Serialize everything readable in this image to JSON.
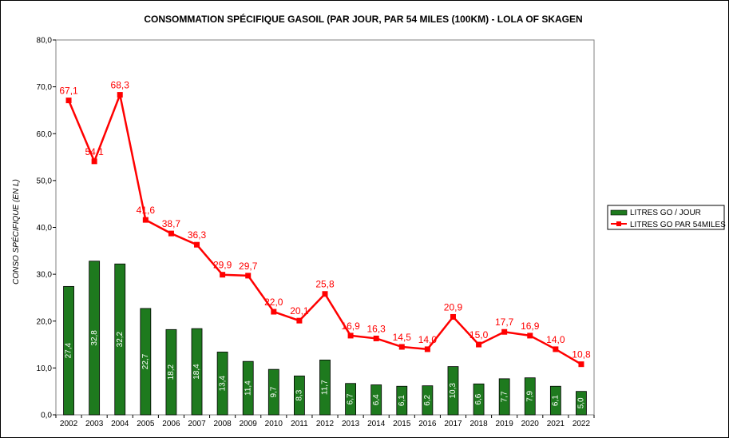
{
  "chart_data": {
    "type": "bar+line",
    "title": "CONSOMMATION SPÉCIFIQUE GASOIL (PAR JOUR, PAR 54 MILES (100KM) - LOLA OF SKAGEN",
    "ylabel": "CONSO SPÉCIFIQUE (EN L)",
    "xlabel": "",
    "ylim": [
      0,
      80
    ],
    "yticks": [
      "0,0",
      "10,0",
      "20,0",
      "30,0",
      "40,0",
      "50,0",
      "60,0",
      "70,0",
      "80,0"
    ],
    "categories": [
      "2002",
      "2003",
      "2004",
      "2005",
      "2006",
      "2007",
      "2008",
      "2009",
      "2010",
      "2011",
      "2012",
      "2013",
      "2014",
      "2015",
      "2016",
      "2017",
      "2018",
      "2019",
      "2020",
      "2021",
      "2022"
    ],
    "series": [
      {
        "name": "LITRES GO / JOUR",
        "kind": "bar",
        "color": "#1e7a1e",
        "values": [
          27.4,
          32.8,
          32.2,
          22.7,
          18.2,
          18.4,
          13.4,
          11.4,
          9.7,
          8.3,
          11.7,
          6.7,
          6.4,
          6.1,
          6.2,
          10.3,
          6.6,
          7.7,
          7.9,
          6.1,
          5.0
        ],
        "labels": [
          "27,4",
          "32,8",
          "32,2",
          "22,7",
          "18,2",
          "18,4",
          "13,4",
          "11,4",
          "9,7",
          "8,3",
          "11,7",
          "6,7",
          "6,4",
          "6,1",
          "6,2",
          "10,3",
          "6,6",
          "7,7",
          "7,9",
          "6,1",
          "5,0"
        ]
      },
      {
        "name": "LITRES GO PAR 54MILES",
        "kind": "line",
        "color": "#ff0000",
        "values": [
          67.1,
          54.1,
          68.3,
          41.6,
          38.7,
          36.3,
          29.9,
          29.7,
          22.0,
          20.1,
          25.8,
          16.9,
          16.3,
          14.5,
          14.0,
          20.9,
          15.0,
          17.7,
          16.9,
          14.0,
          10.8
        ],
        "labels": [
          "67,1",
          "54,1",
          "68,3",
          "41,6",
          "38,7",
          "36,3",
          "29,9",
          "29,7",
          "22,0",
          "20,1",
          "25,8",
          "16,9",
          "16,3",
          "14,5",
          "14,0",
          "20,9",
          "15,0",
          "17,7",
          "16,9",
          "14,0",
          "10,8"
        ]
      }
    ],
    "legend_position": "right",
    "grid": false
  }
}
